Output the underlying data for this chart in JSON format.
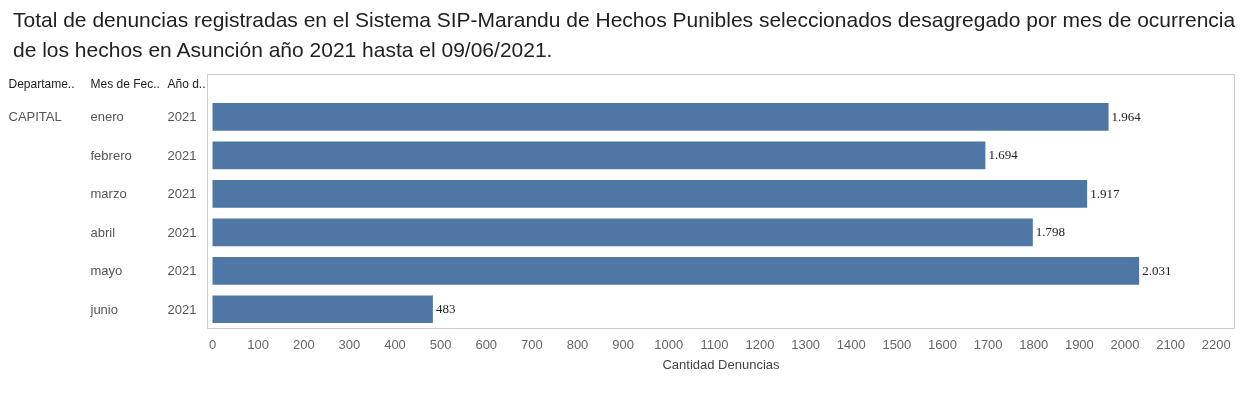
{
  "chart_data": {
    "type": "bar",
    "orientation": "horizontal",
    "title": "Total de denuncias registradas en el Sistema SIP-Marandu de Hechos Punibles seleccionados desagregado por mes de ocurrencia de los hechos en Asunción año 2021 hasta el 09/06/2021.",
    "xlabel": "Cantidad Denuncias",
    "categories": [
      "enero",
      "febrero",
      "marzo",
      "abril",
      "mayo",
      "junio"
    ],
    "values": [
      1964,
      1694,
      1917,
      1798,
      2031,
      483
    ],
    "value_labels": [
      "1.964",
      "1.694",
      "1.917",
      "1.798",
      "2.031",
      "483"
    ],
    "color": "#4e77a6",
    "xlim": [
      -11,
      2240
    ],
    "xticks": [
      0,
      100,
      200,
      300,
      400,
      500,
      600,
      700,
      800,
      900,
      1000,
      1100,
      1200,
      1300,
      1400,
      1500,
      1600,
      1700,
      1800,
      1900,
      2000,
      2100,
      2200
    ],
    "grid": false,
    "annotations": [
      "Departame..",
      "Mes de Fec..",
      "Año d..",
      "CAPITAL",
      "2021",
      "2021",
      "2021",
      "2021",
      "2021",
      "2021"
    ]
  }
}
